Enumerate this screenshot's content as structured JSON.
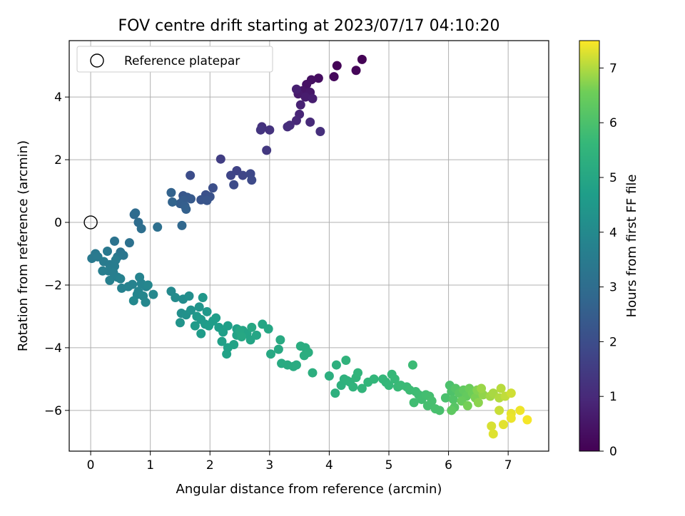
{
  "chart_data": {
    "type": "scatter",
    "title": "FOV centre drift starting at 2023/07/17 04:10:20",
    "xlabel": "Angular distance from reference (arcmin)",
    "ylabel": "Rotation from reference (arcmin)",
    "xlim": [
      -0.36,
      7.68
    ],
    "ylim": [
      -7.3,
      5.8
    ],
    "xticks": [
      0,
      1,
      2,
      3,
      4,
      5,
      6,
      7
    ],
    "yticks": [
      -6,
      -4,
      -2,
      0,
      2,
      4
    ],
    "grid": true,
    "legend": {
      "position": "upper-left",
      "entries": [
        "Reference platepar"
      ]
    },
    "reference_point": {
      "x": 0,
      "y": 0,
      "label": "Reference platepar"
    },
    "colorbar": {
      "label": "Hours from first FF file",
      "colormap": "viridis",
      "range": [
        0,
        7.5
      ],
      "ticks": [
        0,
        1,
        2,
        3,
        4,
        5,
        6,
        7
      ]
    },
    "points": [
      [
        4.55,
        5.2,
        0.02
      ],
      [
        4.13,
        5.0,
        0.08
      ],
      [
        4.45,
        4.85,
        0.12
      ],
      [
        4.08,
        4.65,
        0.18
      ],
      [
        3.82,
        4.6,
        0.3
      ],
      [
        3.7,
        4.55,
        0.35
      ],
      [
        3.62,
        4.4,
        0.42
      ],
      [
        3.55,
        4.2,
        0.5
      ],
      [
        3.68,
        4.15,
        0.55
      ],
      [
        3.48,
        4.1,
        0.6
      ],
      [
        3.6,
        4.0,
        0.65
      ],
      [
        3.72,
        3.95,
        0.7
      ],
      [
        3.45,
        4.25,
        0.75
      ],
      [
        3.52,
        3.75,
        0.8
      ],
      [
        3.5,
        3.45,
        0.9
      ],
      [
        3.45,
        3.25,
        0.95
      ],
      [
        3.68,
        3.2,
        1.0
      ],
      [
        3.34,
        3.1,
        1.05
      ],
      [
        3.3,
        3.05,
        1.1
      ],
      [
        3.85,
        2.9,
        1.15
      ],
      [
        2.87,
        3.05,
        1.2
      ],
      [
        3.0,
        2.95,
        1.25
      ],
      [
        2.85,
        2.95,
        1.3
      ],
      [
        2.95,
        2.3,
        1.4
      ],
      [
        2.18,
        2.02,
        1.55
      ],
      [
        2.45,
        1.65,
        1.7
      ],
      [
        2.35,
        1.5,
        1.75
      ],
      [
        2.55,
        1.5,
        1.8
      ],
      [
        2.68,
        1.55,
        1.85
      ],
      [
        2.7,
        1.35,
        1.9
      ],
      [
        2.4,
        1.2,
        1.95
      ],
      [
        1.67,
        1.5,
        2.0
      ],
      [
        2.05,
        1.1,
        2.05
      ],
      [
        1.93,
        0.88,
        2.1
      ],
      [
        2.0,
        0.82,
        2.15
      ],
      [
        1.85,
        0.72,
        2.2
      ],
      [
        1.95,
        0.7,
        2.25
      ],
      [
        1.55,
        0.85,
        2.3
      ],
      [
        1.62,
        0.8,
        2.35
      ],
      [
        1.68,
        0.75,
        2.4
      ],
      [
        1.55,
        0.7,
        2.45
      ],
      [
        1.5,
        0.6,
        2.5
      ],
      [
        1.58,
        0.52,
        2.55
      ],
      [
        1.6,
        0.42,
        2.6
      ],
      [
        1.35,
        0.95,
        2.65
      ],
      [
        1.37,
        0.65,
        2.7
      ],
      [
        1.53,
        -0.1,
        2.8
      ],
      [
        0.73,
        0.25,
        2.9
      ],
      [
        0.75,
        0.3,
        2.95
      ],
      [
        0.8,
        0.0,
        3.0
      ],
      [
        0.85,
        -0.2,
        3.05
      ],
      [
        1.12,
        -0.15,
        3.1
      ],
      [
        0.65,
        -0.65,
        3.15
      ],
      [
        0.4,
        -0.6,
        3.2
      ],
      [
        0.5,
        -0.95,
        3.25
      ],
      [
        0.55,
        -1.05,
        3.3
      ],
      [
        0.45,
        -1.1,
        3.35
      ],
      [
        0.28,
        -0.92,
        3.38
      ],
      [
        0.08,
        -1.0,
        3.4
      ],
      [
        0.02,
        -1.15,
        3.42
      ],
      [
        0.12,
        -1.1,
        3.45
      ],
      [
        0.22,
        -1.25,
        3.48
      ],
      [
        0.32,
        -1.35,
        3.5
      ],
      [
        0.42,
        -1.2,
        3.52
      ],
      [
        0.4,
        -1.4,
        3.55
      ],
      [
        0.3,
        -1.55,
        3.58
      ],
      [
        0.2,
        -1.55,
        3.6
      ],
      [
        0.38,
        -1.6,
        3.62
      ],
      [
        0.45,
        -1.75,
        3.65
      ],
      [
        0.32,
        -1.85,
        3.67
      ],
      [
        0.5,
        -1.8,
        3.7
      ],
      [
        0.52,
        -2.1,
        3.72
      ],
      [
        0.63,
        -2.05,
        3.74
      ],
      [
        0.7,
        -1.98,
        3.76
      ],
      [
        0.82,
        -1.75,
        3.78
      ],
      [
        0.85,
        -1.95,
        3.8
      ],
      [
        0.93,
        -2.05,
        3.82
      ],
      [
        0.8,
        -2.2,
        3.84
      ],
      [
        0.78,
        -2.3,
        3.86
      ],
      [
        0.88,
        -2.35,
        3.88
      ],
      [
        0.96,
        -2.0,
        3.9
      ],
      [
        0.92,
        -2.55,
        3.92
      ],
      [
        1.05,
        -2.3,
        3.94
      ],
      [
        0.72,
        -2.5,
        3.96
      ],
      [
        1.35,
        -2.2,
        4.0
      ],
      [
        1.42,
        -2.4,
        4.05
      ],
      [
        1.55,
        -2.45,
        4.1
      ],
      [
        1.65,
        -2.35,
        4.15
      ],
      [
        1.52,
        -2.9,
        4.2
      ],
      [
        1.6,
        -2.95,
        4.25
      ],
      [
        1.68,
        -2.8,
        4.3
      ],
      [
        1.5,
        -3.2,
        4.35
      ],
      [
        1.82,
        -2.7,
        4.4
      ],
      [
        1.88,
        -2.4,
        4.45
      ],
      [
        1.95,
        -2.85,
        4.5
      ],
      [
        1.78,
        -3.0,
        4.52
      ],
      [
        1.85,
        -3.1,
        4.55
      ],
      [
        1.92,
        -3.25,
        4.58
      ],
      [
        1.75,
        -3.3,
        4.6
      ],
      [
        1.85,
        -3.55,
        4.62
      ],
      [
        1.98,
        -3.3,
        4.64
      ],
      [
        2.05,
        -3.15,
        4.66
      ],
      [
        2.1,
        -3.05,
        4.68
      ],
      [
        2.15,
        -3.35,
        4.7
      ],
      [
        2.22,
        -3.5,
        4.72
      ],
      [
        2.3,
        -3.3,
        4.74
      ],
      [
        2.45,
        -3.4,
        4.76
      ],
      [
        2.2,
        -3.8,
        4.78
      ],
      [
        2.3,
        -4.0,
        4.8
      ],
      [
        2.28,
        -4.2,
        4.82
      ],
      [
        2.4,
        -3.9,
        4.84
      ],
      [
        2.45,
        -3.6,
        4.86
      ],
      [
        2.55,
        -3.45,
        4.88
      ],
      [
        2.62,
        -3.55,
        4.9
      ],
      [
        2.68,
        -3.75,
        4.92
      ],
      [
        2.78,
        -3.6,
        4.94
      ],
      [
        2.88,
        -3.25,
        4.96
      ],
      [
        2.98,
        -3.4,
        4.98
      ],
      [
        2.5,
        -3.45,
        5.0
      ],
      [
        2.53,
        -3.65,
        5.02
      ],
      [
        2.7,
        -3.35,
        5.04
      ],
      [
        3.02,
        -4.2,
        5.06
      ],
      [
        3.15,
        -4.05,
        5.08
      ],
      [
        3.18,
        -3.75,
        5.1
      ],
      [
        3.2,
        -4.5,
        5.12
      ],
      [
        3.3,
        -4.55,
        5.14
      ],
      [
        3.4,
        -4.6,
        5.16
      ],
      [
        3.45,
        -4.55,
        5.18
      ],
      [
        3.52,
        -3.95,
        5.2
      ],
      [
        3.6,
        -4.0,
        5.22
      ],
      [
        3.58,
        -4.25,
        5.24
      ],
      [
        3.65,
        -4.15,
        5.26
      ],
      [
        3.72,
        -4.8,
        5.28
      ],
      [
        4.0,
        -4.9,
        5.3
      ],
      [
        4.12,
        -4.55,
        5.32
      ],
      [
        4.1,
        -5.45,
        5.34
      ],
      [
        4.2,
        -5.2,
        5.36
      ],
      [
        4.25,
        -5.0,
        5.38
      ],
      [
        4.3,
        -5.05,
        5.4
      ],
      [
        4.35,
        -5.1,
        5.42
      ],
      [
        4.28,
        -4.4,
        5.44
      ],
      [
        4.4,
        -5.25,
        5.46
      ],
      [
        4.45,
        -4.95,
        5.48
      ],
      [
        4.48,
        -4.8,
        5.5
      ],
      [
        4.55,
        -5.3,
        5.52
      ],
      [
        4.65,
        -5.1,
        5.54
      ],
      [
        4.75,
        -5.0,
        5.56
      ],
      [
        4.9,
        -5.0,
        5.58
      ],
      [
        4.95,
        -5.1,
        5.6
      ],
      [
        5.0,
        -5.2,
        5.62
      ],
      [
        5.05,
        -4.85,
        5.64
      ],
      [
        5.1,
        -5.0,
        5.66
      ],
      [
        5.15,
        -5.25,
        5.68
      ],
      [
        5.2,
        -5.2,
        5.7
      ],
      [
        5.3,
        -5.25,
        5.72
      ],
      [
        5.4,
        -4.55,
        5.74
      ],
      [
        5.35,
        -5.35,
        5.76
      ],
      [
        5.45,
        -5.4,
        5.78
      ],
      [
        5.5,
        -5.5,
        5.8
      ],
      [
        5.42,
        -5.75,
        5.82
      ],
      [
        5.55,
        -5.65,
        5.84
      ],
      [
        5.62,
        -5.5,
        5.86
      ],
      [
        5.68,
        -5.55,
        5.88
      ],
      [
        5.65,
        -5.85,
        5.9
      ],
      [
        5.72,
        -5.7,
        5.92
      ],
      [
        5.78,
        -5.95,
        5.94
      ],
      [
        5.85,
        -6.0,
        5.96
      ],
      [
        5.95,
        -5.6,
        5.98
      ],
      [
        6.02,
        -5.2,
        6.0
      ],
      [
        6.05,
        -5.4,
        6.05
      ],
      [
        6.08,
        -5.65,
        6.1
      ],
      [
        6.12,
        -5.3,
        6.15
      ],
      [
        6.1,
        -5.9,
        6.2
      ],
      [
        6.18,
        -5.45,
        6.25
      ],
      [
        6.05,
        -6.0,
        6.3
      ],
      [
        6.25,
        -5.35,
        6.35
      ],
      [
        6.3,
        -5.55,
        6.4
      ],
      [
        6.22,
        -5.7,
        6.45
      ],
      [
        6.35,
        -5.3,
        6.5
      ],
      [
        6.4,
        -5.45,
        6.55
      ],
      [
        6.32,
        -5.85,
        6.6
      ],
      [
        6.45,
        -5.6,
        6.65
      ],
      [
        6.48,
        -5.35,
        6.7
      ],
      [
        6.5,
        -5.75,
        6.75
      ],
      [
        6.58,
        -5.5,
        6.8
      ],
      [
        6.55,
        -5.3,
        6.85
      ],
      [
        6.7,
        -5.55,
        6.9
      ],
      [
        6.75,
        -5.45,
        6.95
      ],
      [
        6.85,
        -5.6,
        7.0
      ],
      [
        6.88,
        -5.3,
        7.05
      ],
      [
        6.95,
        -5.55,
        7.1
      ],
      [
        6.85,
        -6.0,
        7.15
      ],
      [
        7.05,
        -5.45,
        7.2
      ],
      [
        6.72,
        -6.5,
        7.25
      ],
      [
        6.75,
        -6.75,
        7.3
      ],
      [
        6.92,
        -6.45,
        7.32
      ],
      [
        7.05,
        -6.1,
        7.35
      ],
      [
        7.05,
        -6.25,
        7.38
      ],
      [
        7.2,
        -6.0,
        7.4
      ],
      [
        7.32,
        -6.3,
        7.45
      ]
    ]
  }
}
